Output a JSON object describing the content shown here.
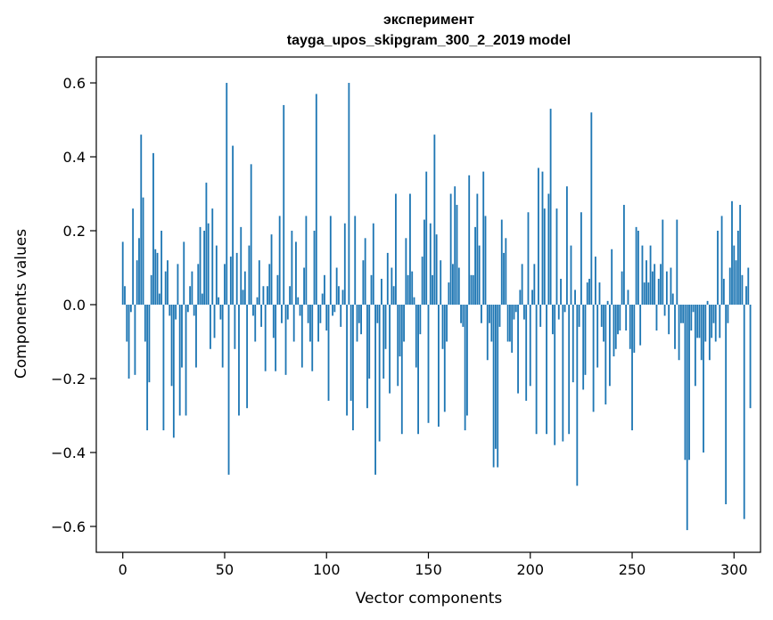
{
  "chart_data": {
    "type": "bar",
    "title_line1": "эксперимент",
    "title_line2": "tayga_upos_skipgram_300_2_2019 model",
    "xlabel": "Vector components",
    "ylabel": "Components values",
    "xlim": [
      -13,
      313
    ],
    "ylim": [
      -0.67,
      0.67
    ],
    "xticks": [
      0,
      50,
      100,
      150,
      200,
      250,
      300
    ],
    "xtick_labels": [
      "0",
      "50",
      "100",
      "150",
      "200",
      "250",
      "300"
    ],
    "yticks": [
      -0.6,
      -0.4,
      -0.2,
      0.0,
      0.2,
      0.4,
      0.6
    ],
    "ytick_labels": [
      "−0.6",
      "−0.4",
      "−0.2",
      "0.0",
      "0.2",
      "0.4",
      "0.6"
    ],
    "bar_color": "#1f77b4",
    "grid": false,
    "legend": "none",
    "values": [
      0.17,
      0.05,
      -0.1,
      -0.2,
      -0.02,
      0.26,
      -0.19,
      0.12,
      0.18,
      0.46,
      0.29,
      -0.1,
      -0.34,
      -0.21,
      0.08,
      0.41,
      0.15,
      0.14,
      0.03,
      0.2,
      -0.34,
      0.09,
      0.12,
      -0.03,
      -0.22,
      -0.36,
      -0.04,
      0.11,
      -0.3,
      -0.17,
      0.17,
      -0.3,
      -0.02,
      0.05,
      0.09,
      -0.03,
      -0.17,
      0.11,
      0.21,
      0.03,
      0.2,
      0.33,
      0.22,
      -0.12,
      0.26,
      -0.09,
      0.16,
      0.02,
      -0.04,
      -0.17,
      0.11,
      0.6,
      -0.46,
      0.13,
      0.43,
      -0.12,
      0.14,
      -0.3,
      0.21,
      0.04,
      0.09,
      -0.28,
      0.16,
      0.38,
      -0.03,
      -0.1,
      0.02,
      0.12,
      -0.06,
      0.05,
      -0.18,
      0.05,
      0.11,
      0.19,
      -0.09,
      -0.18,
      0.08,
      0.24,
      -0.05,
      0.54,
      -0.19,
      -0.04,
      0.05,
      0.2,
      -0.1,
      0.17,
      0.02,
      -0.03,
      -0.17,
      0.1,
      0.24,
      -0.05,
      -0.1,
      -0.18,
      0.2,
      0.57,
      -0.1,
      -0.05,
      0.03,
      0.08,
      -0.07,
      -0.26,
      0.24,
      -0.03,
      -0.02,
      0.1,
      0.05,
      -0.06,
      0.04,
      0.22,
      -0.3,
      0.6,
      -0.26,
      -0.34,
      0.24,
      -0.1,
      -0.05,
      -0.08,
      0.12,
      0.18,
      -0.28,
      -0.2,
      0.08,
      0.22,
      -0.46,
      -0.05,
      -0.37,
      0.07,
      -0.2,
      -0.12,
      0.14,
      -0.24,
      0.1,
      0.05,
      0.3,
      -0.22,
      -0.14,
      -0.35,
      -0.1,
      0.18,
      0.08,
      0.3,
      0.09,
      0.02,
      -0.17,
      -0.35,
      -0.08,
      0.13,
      0.23,
      0.36,
      -0.32,
      0.22,
      0.08,
      0.46,
      0.19,
      -0.33,
      0.12,
      -0.12,
      -0.29,
      -0.1,
      0.06,
      0.3,
      0.11,
      0.32,
      0.27,
      0.1,
      -0.05,
      -0.06,
      -0.34,
      -0.3,
      0.35,
      0.08,
      0.08,
      0.21,
      0.3,
      0.16,
      -0.05,
      0.36,
      0.24,
      -0.15,
      -0.05,
      -0.1,
      -0.44,
      -0.39,
      -0.44,
      -0.06,
      0.23,
      0.14,
      0.18,
      -0.1,
      -0.1,
      -0.13,
      -0.04,
      -0.02,
      -0.24,
      0.04,
      0.11,
      -0.04,
      -0.26,
      0.25,
      -0.22,
      0.04,
      0.11,
      -0.35,
      0.37,
      -0.06,
      0.36,
      0.26,
      -0.35,
      0.3,
      0.53,
      -0.08,
      -0.38,
      0.26,
      -0.04,
      0.07,
      -0.37,
      -0.02,
      0.32,
      -0.35,
      0.16,
      -0.21,
      0.04,
      -0.49,
      -0.06,
      0.25,
      -0.23,
      -0.19,
      0.06,
      0.07,
      0.52,
      -0.29,
      0.13,
      -0.17,
      0.06,
      -0.06,
      -0.1,
      -0.27,
      0.01,
      -0.22,
      0.15,
      -0.14,
      -0.12,
      -0.08,
      -0.07,
      0.09,
      0.27,
      -0.07,
      0.04,
      -0.12,
      -0.34,
      -0.13,
      0.21,
      0.2,
      -0.11,
      0.16,
      0.06,
      0.12,
      0.06,
      0.16,
      0.09,
      0.11,
      -0.07,
      0.07,
      0.11,
      0.23,
      -0.03,
      0.09,
      -0.08,
      0.1,
      0.03,
      -0.12,
      0.23,
      -0.15,
      -0.05,
      -0.05,
      -0.42,
      -0.61,
      -0.42,
      -0.07,
      -0.02,
      -0.22,
      -0.09,
      -0.09,
      -0.15,
      -0.4,
      -0.1,
      0.01,
      -0.15,
      -0.09,
      -0.05,
      -0.1,
      0.2,
      -0.09,
      0.24,
      0.07,
      -0.54,
      -0.05,
      0.1,
      0.28,
      0.16,
      0.12,
      0.2,
      0.27,
      0.08,
      -0.58,
      0.05,
      0.1,
      -0.28
    ]
  }
}
